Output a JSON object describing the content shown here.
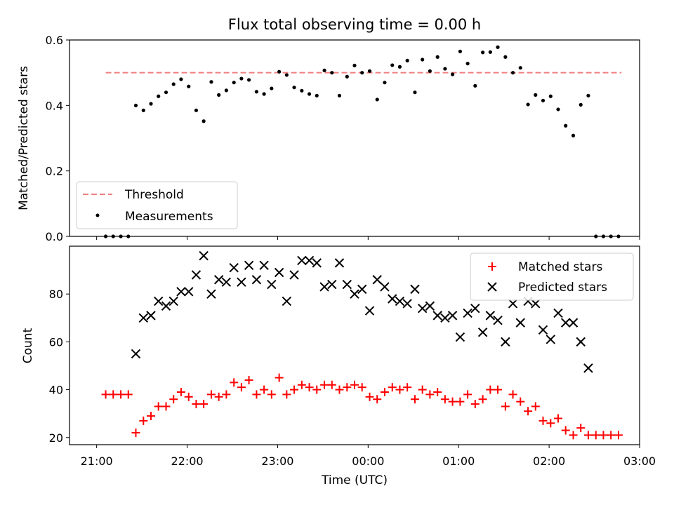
{
  "figure": {
    "title": "Flux total observing time = 0.00 h",
    "xlabel": "Time (UTC)"
  },
  "colors": {
    "threshold": "#f08080",
    "measurements": "#000000",
    "matched": "#ff0000",
    "predicted": "#000000"
  },
  "chart_data": [
    {
      "type": "scatter",
      "panel": "top",
      "title": "Flux total observing time = 0.00 h",
      "xlabel": "",
      "ylabel": "Matched/Predicted stars",
      "x_unit": "hours since 21:00 UTC",
      "xlim": [
        -0.3,
        6.0
      ],
      "ylim": [
        0.0,
        0.6
      ],
      "yticks": [
        0.0,
        0.2,
        0.4,
        0.6
      ],
      "ytick_labels": [
        "0.0",
        "0.2",
        "0.4",
        "0.6"
      ],
      "grid": false,
      "legend_position": "lower-left",
      "series": [
        {
          "name": "Threshold",
          "kind": "dashed-line",
          "x": [
            0.1,
            5.8
          ],
          "y": [
            0.5,
            0.5
          ]
        },
        {
          "name": "Measurements",
          "kind": "dot",
          "x": [
            0.1,
            0.183,
            0.267,
            0.35,
            0.433,
            0.517,
            0.6,
            0.683,
            0.767,
            0.85,
            0.933,
            1.017,
            1.1,
            1.183,
            1.267,
            1.35,
            1.433,
            1.517,
            1.6,
            1.683,
            1.767,
            1.85,
            1.933,
            2.017,
            2.1,
            2.183,
            2.267,
            2.35,
            2.433,
            2.517,
            2.6,
            2.683,
            2.767,
            2.85,
            2.933,
            3.017,
            3.1,
            3.183,
            3.267,
            3.35,
            3.433,
            3.517,
            3.6,
            3.683,
            3.767,
            3.85,
            3.933,
            4.017,
            4.1,
            4.183,
            4.267,
            4.35,
            4.433,
            4.517,
            4.6,
            4.683,
            4.767,
            4.85,
            4.933,
            5.017,
            5.1,
            5.183,
            5.267,
            5.35,
            5.433,
            5.517,
            5.6,
            5.683,
            5.767
          ],
          "y": [
            0.0,
            0.0,
            0.0,
            0.0,
            0.4,
            0.385,
            0.405,
            0.428,
            0.44,
            0.465,
            0.48,
            0.458,
            0.385,
            0.352,
            0.472,
            0.432,
            0.446,
            0.47,
            0.482,
            0.478,
            0.442,
            0.435,
            0.452,
            0.503,
            0.493,
            0.455,
            0.445,
            0.435,
            0.43,
            0.507,
            0.5,
            0.43,
            0.488,
            0.522,
            0.5,
            0.505,
            0.418,
            0.47,
            0.523,
            0.518,
            0.537,
            0.44,
            0.54,
            0.505,
            0.548,
            0.512,
            0.495,
            0.565,
            0.528,
            0.46,
            0.562,
            0.563,
            0.578,
            0.548,
            0.5,
            0.515,
            0.403,
            0.432,
            0.415,
            0.428,
            0.388,
            0.338,
            0.308,
            0.402,
            0.43,
            0.0,
            0.0,
            0.0,
            0.0
          ]
        }
      ]
    },
    {
      "type": "scatter",
      "panel": "bottom",
      "xlabel": "Time (UTC)",
      "ylabel": "Count",
      "x_unit": "hours since 21:00 UTC",
      "xlim": [
        -0.3,
        6.0
      ],
      "ylim": [
        17,
        100
      ],
      "yticks": [
        20,
        40,
        60,
        80
      ],
      "ytick_labels": [
        "20",
        "40",
        "60",
        "80"
      ],
      "xticks": [
        0,
        1,
        2,
        3,
        4,
        5,
        6
      ],
      "xtick_labels": [
        "21:00",
        "22:00",
        "23:00",
        "00:00",
        "01:00",
        "02:00",
        "03:00"
      ],
      "grid": false,
      "legend_position": "upper-right",
      "series": [
        {
          "name": "Matched stars",
          "marker": "plus",
          "x": [
            0.1,
            0.183,
            0.267,
            0.35,
            0.433,
            0.517,
            0.6,
            0.683,
            0.767,
            0.85,
            0.933,
            1.017,
            1.1,
            1.183,
            1.267,
            1.35,
            1.433,
            1.517,
            1.6,
            1.683,
            1.767,
            1.85,
            1.933,
            2.017,
            2.1,
            2.183,
            2.267,
            2.35,
            2.433,
            2.517,
            2.6,
            2.683,
            2.767,
            2.85,
            2.933,
            3.017,
            3.1,
            3.183,
            3.267,
            3.35,
            3.433,
            3.517,
            3.6,
            3.683,
            3.767,
            3.85,
            3.933,
            4.017,
            4.1,
            4.183,
            4.267,
            4.35,
            4.433,
            4.517,
            4.6,
            4.683,
            4.767,
            4.85,
            4.933,
            5.017,
            5.1,
            5.183,
            5.267,
            5.35,
            5.433,
            5.517,
            5.6,
            5.683,
            5.767
          ],
          "y": [
            38,
            38,
            38,
            38,
            22,
            27,
            29,
            33,
            33,
            36,
            39,
            37,
            34,
            34,
            38,
            37,
            38,
            43,
            41,
            44,
            38,
            40,
            38,
            45,
            38,
            40,
            42,
            41,
            40,
            42,
            42,
            40,
            41,
            42,
            41,
            37,
            36,
            39,
            41,
            40,
            41,
            36,
            40,
            38,
            39,
            36,
            35,
            35,
            38,
            34,
            36,
            40,
            40,
            33,
            38,
            35,
            31,
            33,
            27,
            26,
            28,
            23,
            21,
            24,
            21,
            21,
            21,
            21,
            21
          ]
        },
        {
          "name": "Predicted stars",
          "marker": "x",
          "x": [
            0.433,
            0.517,
            0.6,
            0.683,
            0.767,
            0.85,
            0.933,
            1.017,
            1.1,
            1.183,
            1.267,
            1.35,
            1.433,
            1.517,
            1.6,
            1.683,
            1.767,
            1.85,
            1.933,
            2.017,
            2.1,
            2.183,
            2.267,
            2.35,
            2.433,
            2.517,
            2.6,
            2.683,
            2.767,
            2.85,
            2.933,
            3.017,
            3.1,
            3.183,
            3.267,
            3.35,
            3.433,
            3.517,
            3.6,
            3.683,
            3.767,
            3.85,
            3.933,
            4.017,
            4.1,
            4.183,
            4.267,
            4.35,
            4.433,
            4.517,
            4.6,
            4.683,
            4.767,
            4.85,
            4.933,
            5.017,
            5.1,
            5.183,
            5.267,
            5.35,
            5.433
          ],
          "y": [
            55,
            70,
            71,
            77,
            75,
            77,
            81,
            81,
            88,
            96,
            80,
            86,
            85,
            91,
            85,
            92,
            86,
            92,
            84,
            89,
            77,
            88,
            94,
            94,
            93,
            83,
            84,
            93,
            84,
            80,
            82,
            73,
            86,
            83,
            78,
            77,
            76,
            82,
            74,
            75,
            71,
            70,
            71,
            62,
            72,
            74,
            64,
            71,
            69,
            60,
            76,
            68,
            77,
            76,
            65,
            61,
            72,
            68,
            68,
            60,
            49
          ]
        }
      ]
    }
  ]
}
